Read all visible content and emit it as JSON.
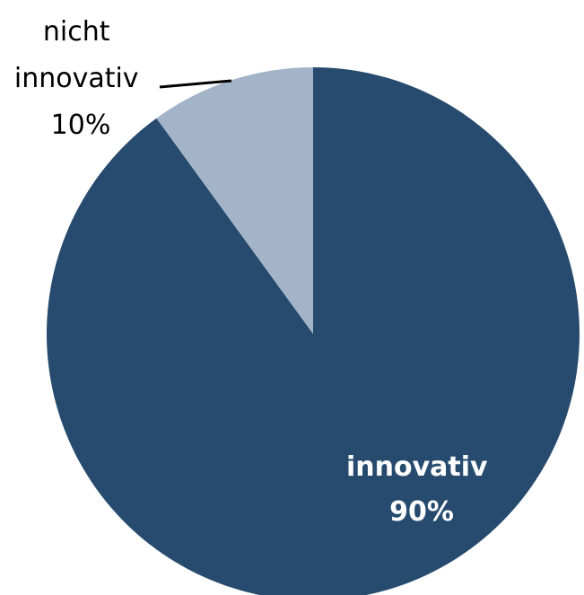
{
  "chart_data": {
    "type": "pie",
    "title": "",
    "slices": [
      {
        "label_lines": [
          "innovativ",
          "90%"
        ],
        "name": "innovativ",
        "value": 90,
        "color": "#264b6e"
      },
      {
        "label_lines": [
          "nicht",
          "innovativ",
          "10%"
        ],
        "name": "nicht innovativ",
        "value": 10,
        "color": "#a3b4c8"
      }
    ],
    "start_angle_deg": 0,
    "direction": "clockwise",
    "legend": "none",
    "label_colors": {
      "inner": "#ffffff",
      "outer": "#000000"
    }
  }
}
